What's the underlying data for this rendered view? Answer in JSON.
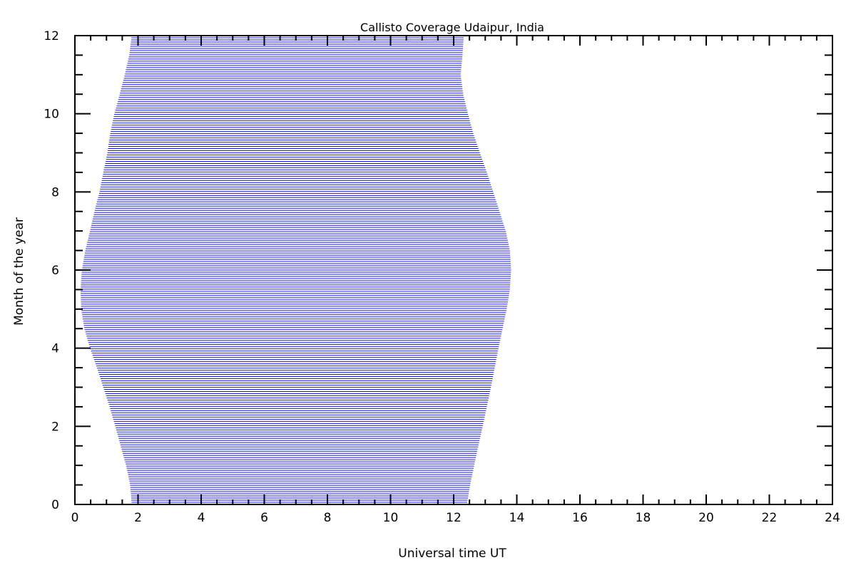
{
  "chart_data": {
    "type": "area",
    "title": "Callisto Coverage Udaipur, India",
    "xlabel": "Universal time UT",
    "ylabel": "Month of the year",
    "xlim": [
      0,
      24
    ],
    "ylim": [
      0,
      12
    ],
    "x_ticks": [
      0,
      2,
      4,
      6,
      8,
      10,
      12,
      14,
      16,
      18,
      20,
      22,
      24
    ],
    "y_ticks": [
      0,
      2,
      4,
      6,
      8,
      10,
      12
    ],
    "x_tick_labels": [
      "0",
      "2",
      "4",
      "6",
      "8",
      "10",
      "12",
      "14",
      "16",
      "18",
      "20",
      "22",
      "24"
    ],
    "y_tick_labels": [
      "0",
      "2",
      "4",
      "6",
      "8",
      "10",
      "12"
    ],
    "x_minor_step": 0.5,
    "y_minor_step": 0.5,
    "fill_style": "horizontal-lines",
    "line_color": "#1a1adc",
    "grid": false,
    "coverage": [
      {
        "month": 0,
        "start_ut": 1.8,
        "end_ut": 12.42
      },
      {
        "month": 0.5,
        "start_ut": 1.75,
        "end_ut": 12.52
      },
      {
        "month": 1,
        "start_ut": 1.62,
        "end_ut": 12.65
      },
      {
        "month": 1.5,
        "start_ut": 1.45,
        "end_ut": 12.78
      },
      {
        "month": 2,
        "start_ut": 1.28,
        "end_ut": 12.92
      },
      {
        "month": 2.5,
        "start_ut": 1.1,
        "end_ut": 13.05
      },
      {
        "month": 3,
        "start_ut": 0.9,
        "end_ut": 13.18
      },
      {
        "month": 3.5,
        "start_ut": 0.7,
        "end_ut": 13.3
      },
      {
        "month": 4,
        "start_ut": 0.48,
        "end_ut": 13.42
      },
      {
        "month": 4.5,
        "start_ut": 0.3,
        "end_ut": 13.55
      },
      {
        "month": 5,
        "start_ut": 0.2,
        "end_ut": 13.68
      },
      {
        "month": 5.5,
        "start_ut": 0.18,
        "end_ut": 13.78
      },
      {
        "month": 6,
        "start_ut": 0.22,
        "end_ut": 13.82
      },
      {
        "month": 6.5,
        "start_ut": 0.33,
        "end_ut": 13.78
      },
      {
        "month": 7,
        "start_ut": 0.48,
        "end_ut": 13.65
      },
      {
        "month": 7.5,
        "start_ut": 0.62,
        "end_ut": 13.45
      },
      {
        "month": 8,
        "start_ut": 0.78,
        "end_ut": 13.25
      },
      {
        "month": 8.5,
        "start_ut": 0.9,
        "end_ut": 13.05
      },
      {
        "month": 9,
        "start_ut": 1.03,
        "end_ut": 12.83
      },
      {
        "month": 9.5,
        "start_ut": 1.12,
        "end_ut": 12.62
      },
      {
        "month": 10,
        "start_ut": 1.25,
        "end_ut": 12.45
      },
      {
        "month": 10.5,
        "start_ut": 1.42,
        "end_ut": 12.3
      },
      {
        "month": 11,
        "start_ut": 1.58,
        "end_ut": 12.22
      },
      {
        "month": 11.5,
        "start_ut": 1.72,
        "end_ut": 12.28
      },
      {
        "month": 12,
        "start_ut": 1.8,
        "end_ut": 12.32
      }
    ]
  }
}
